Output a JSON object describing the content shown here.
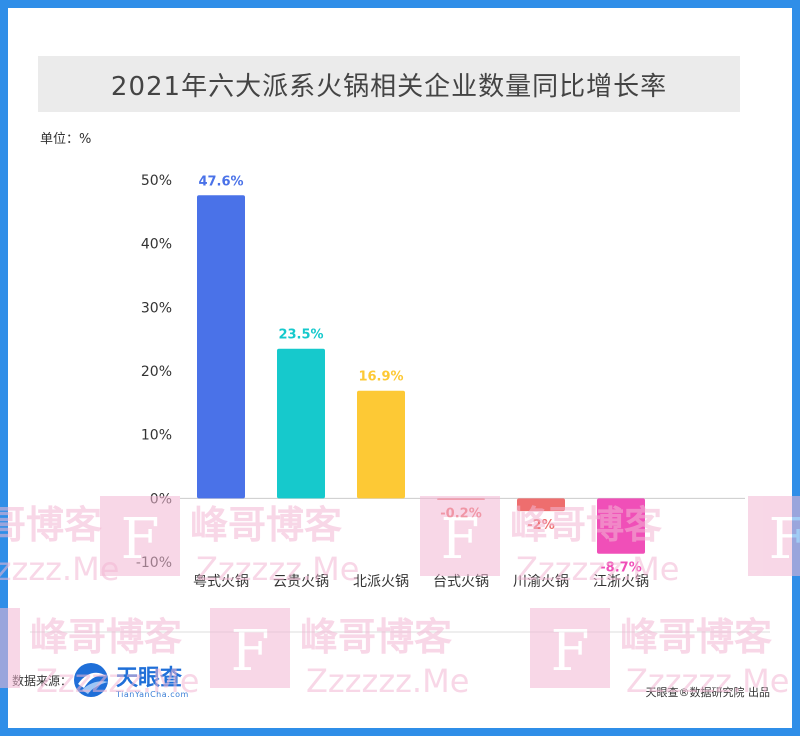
{
  "title": "2021年六大派系火锅相关企业数量同比增长率",
  "unit_label": "单位：%",
  "chart_data": {
    "type": "bar",
    "title": "2021年六大派系火锅相关企业数量同比增长率",
    "xlabel": "",
    "ylabel": "",
    "ylim": [
      -10,
      50
    ],
    "yticks": [
      "50%",
      "40%",
      "30%",
      "20%",
      "10%",
      "0%",
      "-10%"
    ],
    "ytick_values": [
      50,
      40,
      30,
      20,
      10,
      0,
      -10
    ],
    "categories": [
      "粤式火锅",
      "云贵火锅",
      "北派火锅",
      "台式火锅",
      "川渝火锅",
      "江浙火锅"
    ],
    "values": [
      47.6,
      23.5,
      16.9,
      -0.2,
      -2,
      -8.7
    ],
    "data_labels": [
      "47.6%",
      "23.5%",
      "16.9%",
      "-0.2%",
      "-2%",
      "-8.7%"
    ],
    "colors": [
      "#4a72e8",
      "#16c9cc",
      "#fdc935",
      "#ee6e6e",
      "#ee6e6e",
      "#f04fb8"
    ],
    "label_colors": [
      "#4a72e8",
      "#16c9cc",
      "#fdc935",
      "#ee6e6e",
      "#ee6e6e",
      "#f04fb8"
    ]
  },
  "footer": {
    "source_label": "数据来源：",
    "logo_name": "天眼查",
    "logo_url": "TianYanCha.com",
    "credit": "天眼查®数据研究院 出品"
  },
  "watermark": {
    "letter": "F",
    "cn_text": "峰哥博客",
    "en_text": "Zzzzzz.Me",
    "color": "#f3b8d4"
  }
}
